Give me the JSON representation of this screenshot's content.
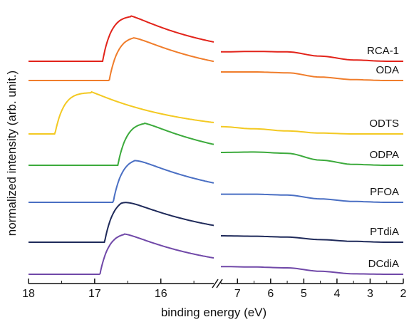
{
  "chart_data": {
    "type": "line",
    "xlabel": "binding energy (eV)",
    "ylabel": "normalized intensity (arb. unit.)",
    "x_axis_reversed": true,
    "broken_x_axis": true,
    "xlim_left_segment": [
      18,
      15.2
    ],
    "xlim_right_segment": [
      7.5,
      2
    ],
    "x_ticks_left_segment": [
      "18",
      "17",
      "16"
    ],
    "x_ticks_right_segment": [
      "7",
      "6",
      "5",
      "4",
      "3",
      "2"
    ],
    "y_ticks_shown": false,
    "grid": false,
    "legend": "none; series labels at right end of each trace",
    "series": [
      {
        "name": "RCA-1",
        "color": "#e2231a",
        "cutoff": 16.88,
        "baseline": 0.0,
        "peak": 16.45,
        "peak_height": 1.0,
        "vb_x": [
          7.5,
          6.5,
          5.5,
          4.5,
          3.5,
          2.5,
          2.0
        ],
        "vb_y": [
          0.22,
          0.23,
          0.22,
          0.12,
          0.03,
          0.0,
          0.0
        ]
      },
      {
        "name": "ODA",
        "color": "#f07d2b",
        "cutoff": 16.78,
        "baseline": 0.0,
        "peak": 16.42,
        "peak_height": 0.97,
        "vb_x": [
          7.5,
          6.5,
          5.5,
          4.5,
          3.5,
          2.5,
          2.0
        ],
        "vb_y": [
          0.2,
          0.2,
          0.18,
          0.08,
          0.02,
          0.0,
          0.0
        ]
      },
      {
        "name": "ODTS",
        "color": "#f3c922",
        "cutoff": 17.6,
        "baseline": 0.0,
        "peak": 17.05,
        "peak_height": 0.93,
        "vb_x": [
          7.5,
          6.5,
          5.5,
          4.5,
          3.5,
          2.5,
          2.0
        ],
        "vb_y": [
          0.17,
          0.12,
          0.07,
          0.02,
          0.0,
          0.0,
          0.0
        ]
      },
      {
        "name": "ODPA",
        "color": "#3caa3c",
        "cutoff": 16.65,
        "baseline": 0.0,
        "peak": 16.25,
        "peak_height": 0.93,
        "vb_x": [
          7.5,
          6.5,
          5.5,
          4.5,
          3.5,
          2.5,
          2.0
        ],
        "vb_y": [
          0.3,
          0.31,
          0.28,
          0.12,
          0.02,
          0.0,
          0.0
        ]
      },
      {
        "name": "PFOA",
        "color": "#4a6fc3",
        "cutoff": 16.72,
        "baseline": 0.0,
        "peak": 16.4,
        "peak_height": 0.93,
        "vb_x": [
          7.5,
          6.5,
          5.5,
          4.5,
          3.5,
          2.5,
          2.0
        ],
        "vb_y": [
          0.19,
          0.19,
          0.17,
          0.08,
          0.02,
          0.0,
          0.0
        ]
      },
      {
        "name": "PTdiA",
        "color": "#1f2a5a",
        "cutoff": 16.85,
        "baseline": 0.0,
        "peak": 16.6,
        "peak_height": 0.93,
        "vb_x": [
          7.5,
          6.5,
          5.5,
          4.5,
          3.5,
          2.5,
          2.0
        ],
        "vb_y": [
          0.15,
          0.14,
          0.12,
          0.06,
          0.02,
          0.0,
          0.0
        ]
      },
      {
        "name": "DCdiA",
        "color": "#7048a8",
        "cutoff": 16.92,
        "baseline": 0.0,
        "peak": 16.55,
        "peak_height": 0.91,
        "vb_x": [
          7.5,
          6.5,
          5.5,
          4.5,
          3.5,
          2.5,
          2.0
        ],
        "vb_y": [
          0.18,
          0.17,
          0.15,
          0.07,
          0.01,
          0.0,
          0.0
        ]
      }
    ]
  }
}
